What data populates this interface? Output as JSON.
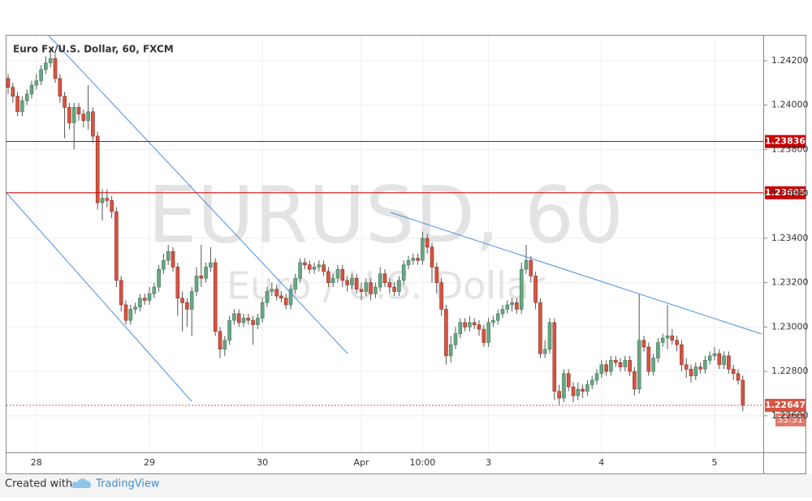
{
  "chart_data": {
    "type": "candlestick",
    "title": "Euro Fx/U.S. Dollar, 60, FXCM",
    "watermark": "EURUSD, 60",
    "watermark_subtitle": "Euro / U.S. Dollar",
    "categories": [
      null,
      null,
      null,
      null,
      null,
      null,
      "28",
      null,
      null,
      null,
      null,
      null,
      null,
      null,
      null,
      null,
      null,
      null,
      null,
      null,
      null,
      null,
      null,
      null,
      null,
      null,
      null,
      null,
      null,
      null,
      "29",
      null,
      null,
      null,
      null,
      null,
      null,
      null,
      null,
      null,
      null,
      null,
      null,
      null,
      null,
      null,
      null,
      null,
      null,
      null,
      null,
      null,
      null,
      null,
      "30",
      null,
      null,
      null,
      null,
      null,
      null,
      null,
      null,
      null,
      null,
      null,
      null,
      null,
      null,
      null,
      null,
      null,
      null,
      null,
      null,
      "Apr",
      null,
      null,
      null,
      null,
      null,
      null,
      null,
      null,
      null,
      null,
      null,
      null,
      "10:00",
      null,
      null,
      null,
      null,
      null,
      null,
      null,
      null,
      null,
      null,
      null,
      null,
      null,
      "3",
      null,
      null,
      null,
      null,
      null,
      null,
      null,
      null,
      null,
      null,
      null,
      null,
      null,
      null,
      null,
      null,
      null,
      null,
      null,
      null,
      null,
      null,
      null,
      "4",
      null,
      null,
      null,
      null,
      null,
      null,
      null,
      null,
      null,
      null,
      null,
      null,
      null,
      null,
      null,
      null,
      null,
      null,
      null,
      null,
      null,
      null,
      null,
      "5",
      null,
      null,
      null,
      null,
      null,
      null
    ],
    "open": [
      1.2412,
      1.2408,
      1.2404,
      1.2397,
      1.2402,
      1.2405,
      1.2409,
      1.2411,
      1.2416,
      1.2419,
      1.2421,
      1.2412,
      1.2404,
      1.2399,
      1.2392,
      1.2399,
      1.2396,
      1.2393,
      1.2397,
      1.2386,
      1.2356,
      1.2358,
      1.2357,
      1.2352,
      1.2321,
      1.231,
      1.2303,
      1.2308,
      1.2309,
      1.2313,
      1.2312,
      1.2315,
      1.2318,
      1.2326,
      1.233,
      1.2334,
      1.2327,
      1.2313,
      1.2311,
      1.2308,
      1.2316,
      1.2323,
      1.2322,
      1.2327,
      1.2329,
      1.2298,
      1.229,
      1.2294,
      1.2303,
      1.2306,
      1.2302,
      1.2304,
      1.2303,
      1.2301,
      1.2304,
      1.2311,
      1.2316,
      1.2317,
      1.2314,
      1.2313,
      1.231,
      1.2317,
      1.2322,
      1.2329,
      1.2328,
      1.2326,
      1.2327,
      1.2328,
      1.2325,
      1.232,
      1.2322,
      1.2326,
      1.2321,
      1.2319,
      1.2322,
      1.2317,
      1.2316,
      1.232,
      1.2315,
      1.2318,
      1.2324,
      1.232,
      1.2318,
      1.2316,
      1.2321,
      1.2328,
      1.233,
      1.2331,
      1.233,
      1.234,
      1.2336,
      1.2327,
      1.232,
      1.2308,
      1.2287,
      1.2292,
      1.2297,
      1.2302,
      1.23,
      1.2302,
      1.2301,
      1.2299,
      1.2293,
      1.2302,
      1.2303,
      1.2306,
      1.2308,
      1.231,
      1.2311,
      1.2308,
      1.2326,
      1.233,
      1.2323,
      1.2311,
      1.2288,
      1.229,
      1.2302,
      1.2271,
      1.2268,
      1.2279,
      1.2273,
      1.2269,
      1.2272,
      1.2271,
      1.2274,
      1.2276,
      1.2279,
      1.2283,
      1.228,
      1.2285,
      1.2284,
      1.2282,
      1.2285,
      1.228,
      1.2272,
      1.2294,
      1.2291,
      1.228,
      1.2286,
      1.2293,
      1.2295,
      1.2296,
      1.2294,
      1.2292,
      1.2283,
      1.2281,
      1.2278,
      1.2282,
      1.2281,
      1.2285,
      1.2287,
      1.2288,
      1.2283,
      1.2287,
      1.2281,
      1.2279,
      1.2276
    ],
    "high": [
      1.2414,
      1.241,
      1.2406,
      1.2404,
      1.2407,
      1.2411,
      1.2414,
      1.2418,
      1.2422,
      1.2425,
      1.2423,
      1.2414,
      1.2406,
      1.2401,
      1.2401,
      1.2401,
      1.2398,
      1.2409,
      1.2399,
      1.2388,
      1.2362,
      1.2362,
      1.2359,
      1.2354,
      1.2323,
      1.2312,
      1.231,
      1.2311,
      1.2315,
      1.2315,
      1.2318,
      1.232,
      1.2328,
      1.2333,
      1.2337,
      1.2336,
      1.2329,
      1.2316,
      1.2313,
      1.2318,
      1.2327,
      1.2337,
      1.2329,
      1.2336,
      1.2331,
      1.23,
      1.2296,
      1.2305,
      1.2308,
      1.2308,
      1.2306,
      1.2306,
      1.2305,
      1.2306,
      1.2313,
      1.2318,
      1.232,
      1.2319,
      1.2316,
      1.2315,
      1.2319,
      1.2324,
      1.2331,
      1.2331,
      1.233,
      1.2329,
      1.233,
      1.233,
      1.2327,
      1.2324,
      1.2328,
      1.2328,
      1.2323,
      1.2324,
      1.2324,
      1.232,
      1.2322,
      1.2322,
      1.232,
      1.2327,
      1.2326,
      1.2322,
      1.232,
      1.2323,
      1.233,
      1.2332,
      1.2333,
      1.2333,
      1.2343,
      1.2342,
      1.2338,
      1.2329,
      1.2322,
      1.231,
      1.2296,
      1.23,
      1.2304,
      1.2304,
      1.2305,
      1.2304,
      1.2303,
      1.2301,
      1.2304,
      1.2305,
      1.2308,
      1.231,
      1.2312,
      1.2313,
      1.2313,
      1.2329,
      1.2337,
      1.2332,
      1.2325,
      1.2313,
      1.2294,
      1.2304,
      1.2304,
      1.2274,
      1.2281,
      1.2281,
      1.2275,
      1.2275,
      1.2274,
      1.2276,
      1.2278,
      1.2281,
      1.2285,
      1.2285,
      1.2287,
      1.2287,
      1.2286,
      1.2287,
      1.2287,
      1.2282,
      1.2315,
      1.2296,
      1.2293,
      1.2288,
      1.2295,
      1.2297,
      1.231,
      1.2299,
      1.2296,
      1.2294,
      1.2286,
      1.2283,
      1.2284,
      1.2284,
      1.2287,
      1.2289,
      1.2291,
      1.229,
      1.2289,
      1.2289,
      1.2283,
      1.2281,
      1.2278
    ],
    "low": [
      1.2405,
      1.2401,
      1.2395,
      1.2395,
      1.24,
      1.2403,
      1.2407,
      1.2409,
      1.2414,
      1.2417,
      1.241,
      1.2401,
      1.2385,
      1.2389,
      1.238,
      1.2393,
      1.239,
      1.2389,
      1.2383,
      1.2353,
      1.2348,
      1.2354,
      1.2349,
      1.2318,
      1.2307,
      1.2301,
      1.2301,
      1.2306,
      1.2307,
      1.231,
      1.231,
      1.2313,
      1.2316,
      1.2324,
      1.2328,
      1.2325,
      1.2305,
      1.2298,
      1.23,
      1.2296,
      1.2314,
      1.2318,
      1.232,
      1.2325,
      1.2296,
      1.2286,
      1.2287,
      1.2292,
      1.2301,
      1.23,
      1.23,
      1.2301,
      1.2292,
      1.2299,
      1.2302,
      1.2309,
      1.2314,
      1.2312,
      1.2311,
      1.2308,
      1.2308,
      1.2315,
      1.232,
      1.2326,
      1.2324,
      1.2324,
      1.2325,
      1.2323,
      1.2318,
      1.2318,
      1.232,
      1.2318,
      1.2316,
      1.2317,
      1.2315,
      1.2312,
      1.2314,
      1.2312,
      1.2313,
      1.2316,
      1.2318,
      1.2315,
      1.2314,
      1.2314,
      1.2319,
      1.2326,
      1.2328,
      1.2328,
      1.2328,
      1.2333,
      1.232,
      1.2315,
      1.2305,
      1.2283,
      1.2284,
      1.229,
      1.2295,
      1.2298,
      1.2298,
      1.2299,
      1.2296,
      1.2291,
      1.2291,
      1.23,
      1.2301,
      1.2304,
      1.2306,
      1.2307,
      1.2306,
      1.2306,
      1.2324,
      1.232,
      1.2308,
      1.2286,
      1.2286,
      1.2288,
      1.2267,
      1.2265,
      1.2266,
      1.2271,
      1.2266,
      1.2267,
      1.2268,
      1.2269,
      1.2272,
      1.2274,
      1.2277,
      1.2278,
      1.2278,
      1.2282,
      1.228,
      1.228,
      1.2278,
      1.2269,
      1.227,
      1.2289,
      1.2278,
      1.2278,
      1.2284,
      1.2291,
      1.229,
      1.2292,
      1.2289,
      1.228,
      1.2277,
      1.2275,
      1.2276,
      1.2279,
      1.2279,
      1.2283,
      1.2285,
      1.2281,
      1.2281,
      1.2279,
      1.2276,
      1.2274,
      1.2262
    ],
    "close": [
      1.2408,
      1.2404,
      1.2397,
      1.2402,
      1.2405,
      1.2409,
      1.2411,
      1.2416,
      1.2419,
      1.2421,
      1.2412,
      1.2404,
      1.2399,
      1.2392,
      1.2399,
      1.2396,
      1.2393,
      1.2397,
      1.2386,
      1.2356,
      1.2358,
      1.2357,
      1.2352,
      1.2321,
      1.231,
      1.2303,
      1.2308,
      1.2309,
      1.2313,
      1.2312,
      1.2315,
      1.2318,
      1.2326,
      1.233,
      1.2334,
      1.2327,
      1.2313,
      1.2311,
      1.2308,
      1.2316,
      1.2323,
      1.2322,
      1.2327,
      1.2329,
      1.2298,
      1.229,
      1.2294,
      1.2303,
      1.2306,
      1.2302,
      1.2304,
      1.2303,
      1.2301,
      1.2304,
      1.2311,
      1.2316,
      1.2317,
      1.2314,
      1.2313,
      1.231,
      1.2317,
      1.2322,
      1.2329,
      1.2328,
      1.2326,
      1.2327,
      1.2328,
      1.2325,
      1.232,
      1.2322,
      1.2326,
      1.2321,
      1.2319,
      1.2322,
      1.2317,
      1.2316,
      1.232,
      1.2315,
      1.2318,
      1.2324,
      1.232,
      1.2318,
      1.2316,
      1.2321,
      1.2328,
      1.233,
      1.2331,
      1.233,
      1.234,
      1.2336,
      1.2327,
      1.232,
      1.2308,
      1.2287,
      1.2292,
      1.2297,
      1.2302,
      1.23,
      1.2302,
      1.2301,
      1.2299,
      1.2293,
      1.2302,
      1.2303,
      1.2306,
      1.2308,
      1.231,
      1.2311,
      1.2308,
      1.2326,
      1.233,
      1.2323,
      1.2311,
      1.2288,
      1.229,
      1.2302,
      1.2271,
      1.2268,
      1.2279,
      1.2273,
      1.2269,
      1.2272,
      1.2271,
      1.2274,
      1.2276,
      1.2279,
      1.2283,
      1.228,
      1.2285,
      1.2284,
      1.2282,
      1.2285,
      1.228,
      1.2272,
      1.2294,
      1.2291,
      1.228,
      1.2286,
      1.2293,
      1.2295,
      1.2296,
      1.2294,
      1.2292,
      1.2283,
      1.2281,
      1.2278,
      1.2282,
      1.2281,
      1.2285,
      1.2287,
      1.2288,
      1.2283,
      1.2287,
      1.2281,
      1.2279,
      1.2276,
      1.22647
    ],
    "up_color": "#6ba583",
    "down_color": "#d75442",
    "ylim": [
      1.22435,
      1.24313
    ],
    "yticks": [
      {
        "value": 1.226,
        "label": "1.22600"
      },
      {
        "value": 1.228,
        "label": "1.22800"
      },
      {
        "value": 1.23,
        "label": "1.23000"
      },
      {
        "value": 1.232,
        "label": "1.23200"
      },
      {
        "value": 1.234,
        "label": "1.23400"
      },
      {
        "value": 1.236,
        "label": "1.23600"
      },
      {
        "value": 1.238,
        "label": "1.23800"
      },
      {
        "value": 1.24,
        "label": "1.24000"
      },
      {
        "value": 1.242,
        "label": "1.24200"
      }
    ],
    "grid": true,
    "levels": [
      1.23836,
      1.23605
    ],
    "level_color": "#cc0000",
    "last_price": 1.22647,
    "countdown": "33:51",
    "footer": "Created with",
    "brand": "TradingView"
  }
}
